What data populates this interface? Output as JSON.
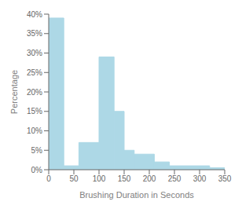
{
  "chart_data": {
    "type": "histogram",
    "bins": [
      0,
      30,
      60,
      100,
      130,
      150,
      170,
      210,
      240,
      300,
      320,
      350
    ],
    "values": [
      39,
      1,
      7,
      29,
      15,
      5,
      4,
      2,
      1,
      1,
      0.5
    ],
    "color": "#add8e6",
    "xlabel": "Brushing Duration in Seconds",
    "ylabel": "Percentage",
    "xlim": [
      0,
      350
    ],
    "ylim": [
      0,
      40
    ],
    "xticks": [
      0,
      50,
      100,
      150,
      200,
      250,
      300,
      350
    ],
    "yticks": [
      {
        "value": 0,
        "label": "0%"
      },
      {
        "value": 5,
        "label": "5%"
      },
      {
        "value": 10,
        "label": "10%"
      },
      {
        "value": 15,
        "label": "15%"
      },
      {
        "value": 20,
        "label": "20%"
      },
      {
        "value": 25,
        "label": "25%"
      },
      {
        "value": 30,
        "label": "30%"
      },
      {
        "value": 35,
        "label": "35%"
      },
      {
        "value": 40,
        "label": "40%"
      }
    ]
  }
}
